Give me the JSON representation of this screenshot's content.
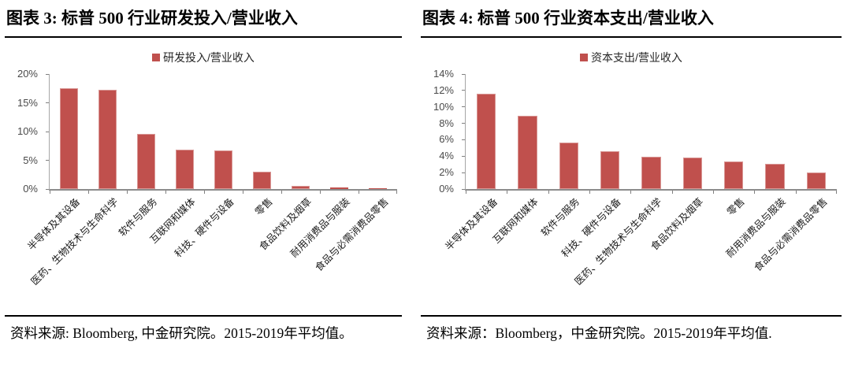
{
  "panels": [
    {
      "title": "图表 3: 标普 500 行业研发投入/营业收入",
      "source_note": "资料来源: Bloomberg, 中金研究院。2015-2019年平均值。"
    },
    {
      "title": "图表 4: 标普 500 行业资本支出/营业收入",
      "source_note": "资料来源：Bloomberg，中金研究院。2015-2019年平均值."
    }
  ],
  "colors": {
    "bar": "#C0504D",
    "bar_highlight": "#D99795",
    "axis_line": "#A6A6A6",
    "baseline": "#8C8C8C",
    "tick_label": "#4a4a4a",
    "rule": "#000000"
  },
  "chart_data": [
    {
      "type": "bar",
      "title": "",
      "legend": "研发投入/营业收入",
      "legend_position": "top",
      "bar_color": "#C0504D",
      "grid": false,
      "categories": [
        "半导体及其设备",
        "医药、生物技术与生命科学",
        "软件与服务",
        "互联网和媒体",
        "科技、硬件与设备",
        "零售",
        "食品饮料及烟草",
        "耐用消费品与服装",
        "食品与必需消费品零售"
      ],
      "values": [
        17.6,
        17.3,
        9.6,
        6.8,
        6.7,
        3.0,
        0.6,
        0.3,
        0.1
      ],
      "xlabel": "",
      "ylabel": "",
      "ylim": [
        0,
        20
      ],
      "yticks": [
        0,
        5,
        10,
        15,
        20
      ],
      "y_suffix": "%"
    },
    {
      "type": "bar",
      "title": "",
      "legend": "资本支出/营业收入",
      "legend_position": "top",
      "bar_color": "#C0504D",
      "grid": false,
      "categories": [
        "半导体及其设备",
        "互联网和媒体",
        "软件与服务",
        "科技、硬件与设备",
        "医药、生物技术与生命科学",
        "食品饮料及烟草",
        "零售",
        "耐用消费品与服装",
        "食品与必需消费品零售"
      ],
      "values": [
        11.6,
        8.9,
        5.7,
        4.6,
        3.9,
        3.8,
        3.4,
        3.1,
        2.0
      ],
      "xlabel": "",
      "ylabel": "",
      "ylim": [
        0,
        14
      ],
      "yticks": [
        0,
        2,
        4,
        6,
        8,
        10,
        12,
        14
      ],
      "y_suffix": "%"
    }
  ]
}
